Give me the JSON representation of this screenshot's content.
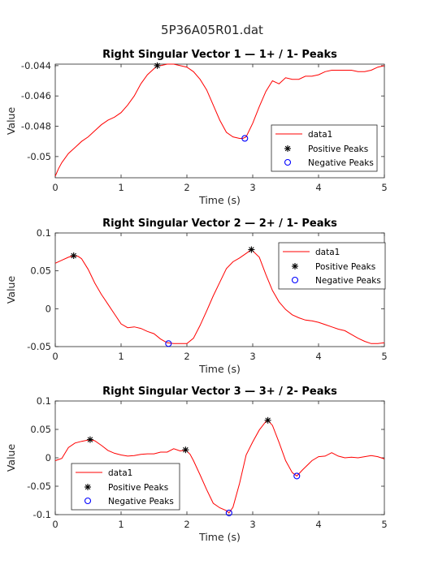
{
  "figure_title": "5P36A05R01.dat",
  "colors": {
    "line": "#ff0000",
    "positive_marker": "#000000",
    "negative_marker": "#0000ff",
    "axes": "#262626"
  },
  "chart_data": [
    {
      "type": "line",
      "title": "Right Singular Vector 1 — 1+ / 1- Peaks",
      "xlabel": "Time (s)",
      "ylabel": "Value",
      "xlim": [
        0,
        5
      ],
      "ylim": [
        -0.0514,
        -0.0439
      ],
      "xticks": [
        0,
        1,
        2,
        3,
        4,
        5
      ],
      "xtick_labels": [
        "0",
        "1",
        "2",
        "3",
        "4",
        "5"
      ],
      "yticks": [
        -0.05,
        -0.048,
        -0.046,
        -0.044
      ],
      "ytick_labels": [
        "-0.05",
        "-0.048",
        "-0.046",
        "-0.044"
      ],
      "legend_position": "lower-right",
      "legend": [
        "data1",
        "Positive Peaks",
        "Negative Peaks"
      ],
      "series": [
        {
          "name": "data1",
          "x": [
            0,
            0.05,
            0.1,
            0.2,
            0.3,
            0.4,
            0.5,
            0.6,
            0.7,
            0.8,
            0.9,
            1.0,
            1.1,
            1.2,
            1.3,
            1.4,
            1.5,
            1.55,
            1.6,
            1.7,
            1.8,
            1.9,
            2.0,
            2.1,
            2.2,
            2.3,
            2.4,
            2.5,
            2.6,
            2.7,
            2.8,
            2.85,
            2.9,
            3.0,
            3.1,
            3.2,
            3.3,
            3.4,
            3.5,
            3.6,
            3.7,
            3.8,
            3.9,
            4.0,
            4.1,
            4.2,
            4.3,
            4.4,
            4.5,
            4.6,
            4.7,
            4.8,
            4.9,
            5.0
          ],
          "y": [
            -0.0513,
            -0.0508,
            -0.0504,
            -0.0498,
            -0.0494,
            -0.049,
            -0.0487,
            -0.0483,
            -0.0479,
            -0.0476,
            -0.0474,
            -0.0471,
            -0.0466,
            -0.046,
            -0.0452,
            -0.0446,
            -0.0442,
            -0.044,
            -0.044,
            -0.0439,
            -0.0439,
            -0.044,
            -0.0441,
            -0.0444,
            -0.0449,
            -0.0456,
            -0.0466,
            -0.0476,
            -0.0484,
            -0.0487,
            -0.0488,
            -0.0488,
            -0.0487,
            -0.0478,
            -0.0467,
            -0.0457,
            -0.045,
            -0.0452,
            -0.0448,
            -0.0449,
            -0.0449,
            -0.0447,
            -0.0447,
            -0.0446,
            -0.0444,
            -0.0443,
            -0.0443,
            -0.0443,
            -0.0443,
            -0.0444,
            -0.0444,
            -0.0443,
            -0.0441,
            -0.044
          ]
        }
      ],
      "positive_peaks": {
        "x": [
          1.55
        ],
        "y": [
          -0.044
        ]
      },
      "negative_peaks": {
        "x": [
          2.88
        ],
        "y": [
          -0.0488
        ]
      }
    },
    {
      "type": "line",
      "title": "Right Singular Vector 2 — 2+ / 1- Peaks",
      "xlabel": "Time (s)",
      "ylabel": "Value",
      "xlim": [
        0,
        5
      ],
      "ylim": [
        -0.05,
        0.1
      ],
      "xticks": [
        0,
        1,
        2,
        3,
        4,
        5
      ],
      "xtick_labels": [
        "0",
        "1",
        "2",
        "3",
        "4",
        "5"
      ],
      "yticks": [
        -0.05,
        0,
        0.05,
        0.1
      ],
      "ytick_labels": [
        "-0.05",
        "0",
        "0.05",
        "0.1"
      ],
      "legend_position": "top-right",
      "legend": [
        "data1",
        "Positive Peaks",
        "Negative Peaks"
      ],
      "series": [
        {
          "name": "data1",
          "x": [
            0,
            0.1,
            0.2,
            0.28,
            0.35,
            0.4,
            0.5,
            0.6,
            0.7,
            0.8,
            0.9,
            1.0,
            1.1,
            1.2,
            1.3,
            1.4,
            1.5,
            1.6,
            1.7,
            1.8,
            1.9,
            2.0,
            2.1,
            2.2,
            2.3,
            2.4,
            2.5,
            2.6,
            2.7,
            2.8,
            2.9,
            2.98,
            3.1,
            3.2,
            3.3,
            3.4,
            3.5,
            3.6,
            3.7,
            3.8,
            3.9,
            4.0,
            4.1,
            4.2,
            4.3,
            4.4,
            4.5,
            4.6,
            4.7,
            4.8,
            4.9,
            5.0
          ],
          "y": [
            0.06,
            0.064,
            0.068,
            0.07,
            0.069,
            0.066,
            0.052,
            0.034,
            0.019,
            0.006,
            -0.007,
            -0.02,
            -0.025,
            -0.024,
            -0.026,
            -0.03,
            -0.033,
            -0.04,
            -0.045,
            -0.046,
            -0.046,
            -0.046,
            -0.039,
            -0.022,
            -0.003,
            0.017,
            0.035,
            0.053,
            0.062,
            0.067,
            0.073,
            0.078,
            0.068,
            0.045,
            0.024,
            0.009,
            -0.001,
            -0.008,
            -0.012,
            -0.015,
            -0.016,
            -0.018,
            -0.021,
            -0.024,
            -0.027,
            -0.029,
            -0.034,
            -0.039,
            -0.043,
            -0.046,
            -0.046,
            -0.045
          ]
        }
      ],
      "positive_peaks": {
        "x": [
          0.28,
          2.98
        ],
        "y": [
          0.07,
          0.078
        ]
      },
      "negative_peaks": {
        "x": [
          1.72
        ],
        "y": [
          -0.046
        ]
      }
    },
    {
      "type": "line",
      "title": "Right Singular Vector 3 — 3+ / 2- Peaks",
      "xlabel": "Time (s)",
      "ylabel": "Value",
      "xlim": [
        0,
        5
      ],
      "ylim": [
        -0.1,
        0.1
      ],
      "xticks": [
        0,
        1,
        2,
        3,
        4,
        5
      ],
      "xtick_labels": [
        "0",
        "1",
        "2",
        "3",
        "4",
        "5"
      ],
      "yticks": [
        -0.1,
        -0.05,
        0,
        0.05,
        0.1
      ],
      "ytick_labels": [
        "-0.1",
        "-0.05",
        "0",
        "0.05",
        "0.1"
      ],
      "legend_position": "lower-left",
      "legend": [
        "data1",
        "Positive Peaks",
        "Negative Peaks"
      ],
      "series": [
        {
          "name": "data1",
          "x": [
            0,
            0.1,
            0.2,
            0.3,
            0.4,
            0.53,
            0.6,
            0.7,
            0.8,
            0.9,
            1.0,
            1.1,
            1.2,
            1.3,
            1.4,
            1.5,
            1.6,
            1.7,
            1.8,
            1.9,
            1.98,
            2.05,
            2.1,
            2.2,
            2.3,
            2.4,
            2.5,
            2.6,
            2.64,
            2.7,
            2.8,
            2.9,
            3.0,
            3.1,
            3.2,
            3.23,
            3.3,
            3.4,
            3.5,
            3.6,
            3.67,
            3.75,
            3.9,
            4.0,
            4.1,
            4.2,
            4.3,
            4.4,
            4.5,
            4.6,
            4.7,
            4.8,
            4.9,
            5.0
          ],
          "y": [
            -0.005,
            -0.001,
            0.018,
            0.026,
            0.029,
            0.032,
            0.03,
            0.022,
            0.013,
            0.008,
            0.005,
            0.003,
            0.004,
            0.006,
            0.007,
            0.007,
            0.01,
            0.01,
            0.016,
            0.012,
            0.014,
            0.006,
            -0.005,
            -0.03,
            -0.056,
            -0.08,
            -0.088,
            -0.093,
            -0.097,
            -0.087,
            -0.045,
            0.005,
            0.028,
            0.049,
            0.064,
            0.066,
            0.057,
            0.027,
            -0.005,
            -0.026,
            -0.032,
            -0.022,
            -0.005,
            0.002,
            0.003,
            0.009,
            0.003,
            0.0,
            0.001,
            0.0,
            0.002,
            0.004,
            0.002,
            -0.002
          ]
        }
      ],
      "positive_peaks": {
        "x": [
          0.53,
          1.98,
          3.23
        ],
        "y": [
          0.032,
          0.014,
          0.066
        ]
      },
      "negative_peaks": {
        "x": [
          2.64,
          3.67
        ],
        "y": [
          -0.097,
          -0.032
        ]
      }
    }
  ]
}
